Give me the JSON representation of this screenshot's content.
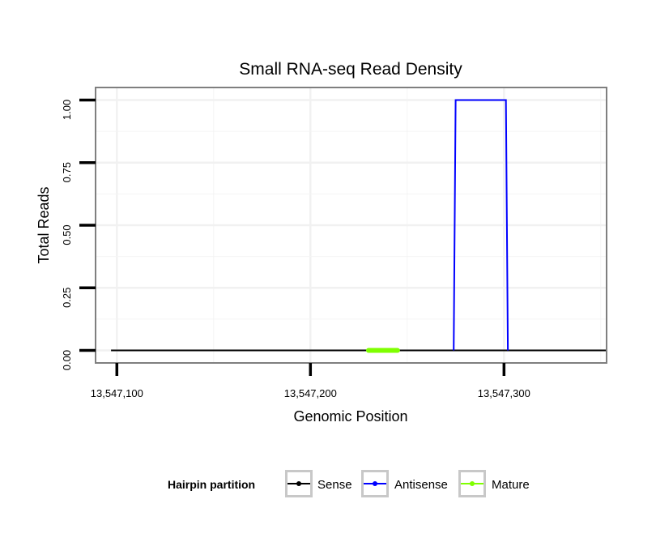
{
  "chart_data": {
    "type": "line",
    "title": "Small RNA-seq Read Density",
    "xlabel": "Genomic Position",
    "ylabel": "Total Reads",
    "xlim": [
      13547089,
      13547353
    ],
    "ylim": [
      -0.05,
      1.05
    ],
    "x_ticks": [
      13547100,
      13547200,
      13547300
    ],
    "x_tick_labels": [
      "13,547,100",
      "13,547,200",
      "13,547,300"
    ],
    "y_ticks": [
      0,
      0.25,
      0.5,
      0.75,
      1.0
    ],
    "y_tick_labels": [
      "0.00",
      "0.25",
      "0.50",
      "0.75",
      "1.00"
    ],
    "grid": true,
    "legend": {
      "title": "Hairpin partition",
      "position": "bottom"
    },
    "series": [
      {
        "name": "Sense",
        "color": "#000000",
        "x": [
          13547097,
          13547353
        ],
        "y": [
          0,
          0
        ]
      },
      {
        "name": "Antisense",
        "color": "#0000ff",
        "x": [
          13547274,
          13547275,
          13547301,
          13547302
        ],
        "y": [
          0,
          1,
          1,
          0
        ]
      },
      {
        "name": "Mature",
        "color": "#7fff00",
        "x": [
          13547230,
          13547245
        ],
        "y": [
          0,
          0
        ]
      }
    ]
  }
}
